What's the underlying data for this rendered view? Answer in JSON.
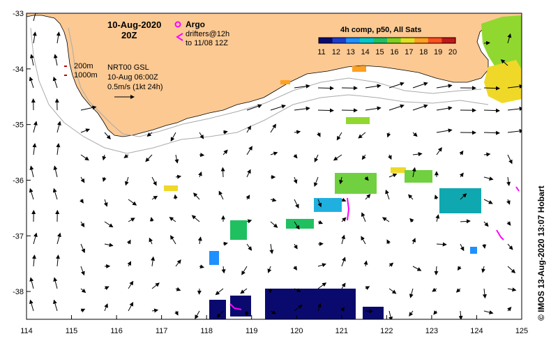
{
  "map": {
    "date": "10-Aug-2020",
    "time": "20Z",
    "lon_ticks": [
      "114",
      "115",
      "116",
      "117",
      "118",
      "119",
      "120",
      "121",
      "122",
      "123",
      "124",
      "125"
    ],
    "lat_ticks": [
      "-33",
      "-34",
      "-35",
      "-36",
      "-37",
      "-38"
    ],
    "lon_range": [
      114,
      125
    ],
    "lat_range": [
      -38.5,
      -33
    ],
    "land_color": "#fcc993",
    "ocean_color": "#ffffff"
  },
  "legend": {
    "argo_label": "Argo",
    "drifters_line1": "drifters@12h",
    "drifters_line2": "to 11/08 12Z",
    "argo_color": "#ff00ff"
  },
  "colorbar": {
    "title": "4h comp, p50, All Sats",
    "ticks": [
      "11",
      "12",
      "13",
      "14",
      "15",
      "16",
      "17",
      "18",
      "19",
      "20"
    ],
    "colors": [
      "#0a0a6e",
      "#1a3fd0",
      "#1e90ff",
      "#00c8c8",
      "#20c060",
      "#7ed020",
      "#e0e020",
      "#ffa020",
      "#ff5020",
      "#c01818"
    ]
  },
  "info": {
    "contour_200": "200m",
    "contour_1000": "1000m",
    "product": "NRT00 GSL",
    "product_time": "10-Aug 06:00Z",
    "scale": "0.5m/s (1kt 24h)"
  },
  "credit": "©  IMOS 13-Aug-2020 13:07 Hobart"
}
